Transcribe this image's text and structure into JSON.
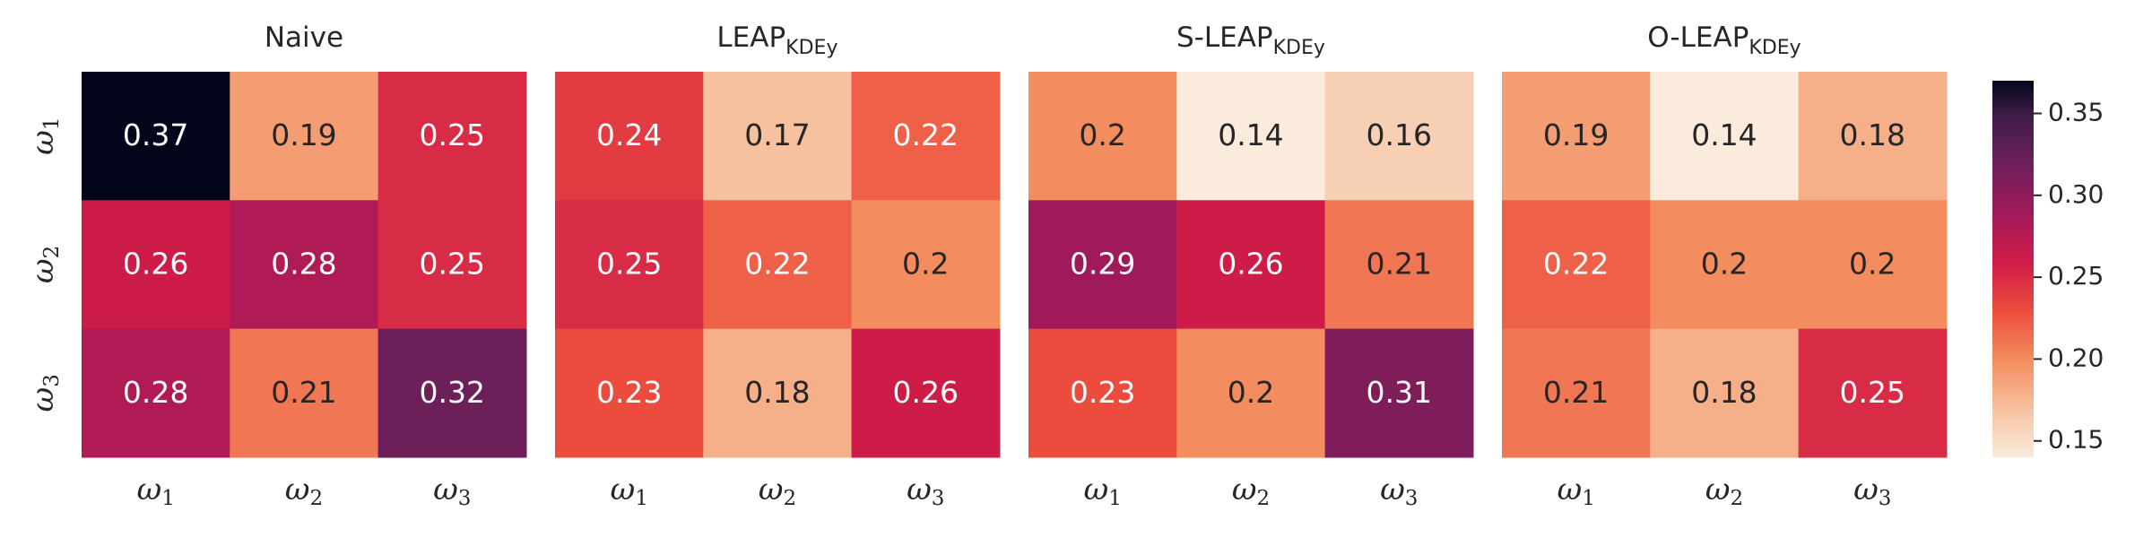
{
  "chart_data": {
    "type": "heatmap",
    "row_labels": [
      {
        "base": "ω",
        "sub": "1"
      },
      {
        "base": "ω",
        "sub": "2"
      },
      {
        "base": "ω",
        "sub": "3"
      }
    ],
    "col_labels": [
      {
        "base": "ω",
        "sub": "1"
      },
      {
        "base": "ω",
        "sub": "2"
      },
      {
        "base": "ω",
        "sub": "3"
      }
    ],
    "panels": [
      {
        "title": "Naive",
        "title_sub": "",
        "values": [
          [
            0.37,
            0.19,
            0.25
          ],
          [
            0.26,
            0.28,
            0.25
          ],
          [
            0.28,
            0.21,
            0.32
          ]
        ]
      },
      {
        "title": "LEAP",
        "title_sub": "KDEy",
        "values": [
          [
            0.24,
            0.17,
            0.22
          ],
          [
            0.25,
            0.22,
            0.2
          ],
          [
            0.23,
            0.18,
            0.26
          ]
        ]
      },
      {
        "title": "S-LEAP",
        "title_sub": "KDEy",
        "values": [
          [
            0.2,
            0.14,
            0.16
          ],
          [
            0.29,
            0.26,
            0.21
          ],
          [
            0.23,
            0.2,
            0.31
          ]
        ]
      },
      {
        "title": "O-LEAP",
        "title_sub": "KDEy",
        "values": [
          [
            0.19,
            0.14,
            0.18
          ],
          [
            0.22,
            0.2,
            0.2
          ],
          [
            0.21,
            0.18,
            0.25
          ]
        ]
      }
    ],
    "colorbar": {
      "ticks": [
        "0.15",
        "0.20",
        "0.25",
        "0.30",
        "0.35"
      ],
      "range": [
        0.14,
        0.37
      ],
      "colormap": "rocket_r"
    }
  }
}
